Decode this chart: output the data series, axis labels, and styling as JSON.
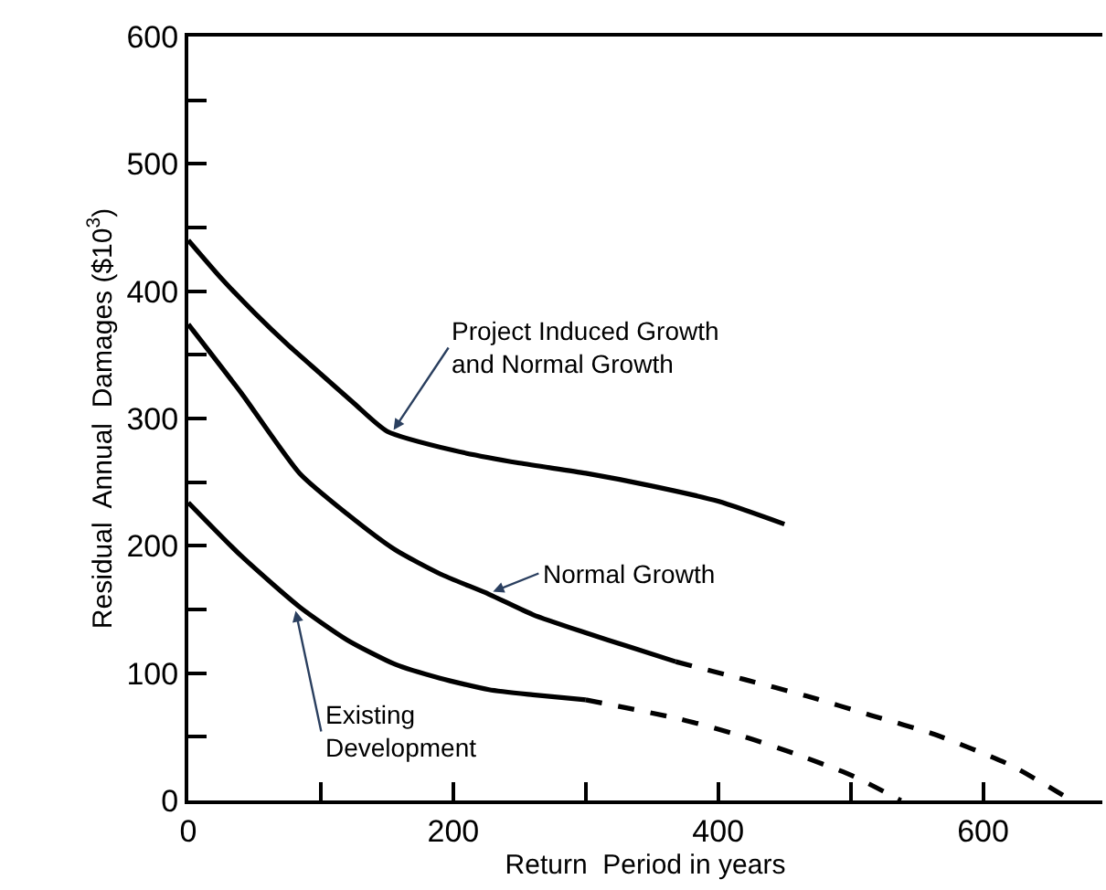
{
  "chart_data": {
    "type": "line",
    "xlabel": "Return  Period in years",
    "ylabel": "Residual  Annual  Damages ($10$^{3}$)",
    "xlim": [
      0,
      690
    ],
    "ylim": [
      0,
      600
    ],
    "xticks": [
      0,
      {
        "value": 100,
        "label": null
      },
      200,
      {
        "value": 300,
        "label": null
      },
      400,
      {
        "value": 500,
        "label": null
      },
      600
    ],
    "yticks": [
      0,
      {
        "value": 50,
        "label": null
      },
      100,
      {
        "value": 150,
        "label": null
      },
      200,
      {
        "value": 250,
        "label": null
      },
      300,
      {
        "value": 350,
        "label": null
      },
      400,
      {
        "value": 450,
        "label": null
      },
      500,
      {
        "value": 550,
        "label": null
      },
      600
    ],
    "marker": "none",
    "series": [
      {
        "color": "#000000",
        "line_style": "solid",
        "x": [
          0,
          25,
          50,
          75,
          100,
          125,
          150,
          200,
          250,
          300,
          350,
          400,
          450
        ],
        "values": [
          440,
          410,
          383,
          358,
          335,
          312,
          290,
          275,
          265,
          257,
          247,
          235,
          217
        ]
      },
      {
        "color": "#000000",
        "line_style": "solid",
        "x": [
          0,
          40,
          84,
          120,
          156,
          190,
          227,
          260,
          299,
          335,
          368
        ],
        "values": [
          374,
          320,
          257,
          225,
          197,
          178,
          162,
          146,
          132,
          120,
          109
        ]
      },
      {
        "color": "#000000",
        "line_style": "dashed",
        "x": [
          368,
          420,
          467,
          515,
          563,
          620,
          667
        ],
        "values": [
          109,
          95,
          82,
          67,
          52,
          28,
          0
        ]
      },
      {
        "color": "#000000",
        "line_style": "solid",
        "x": [
          0,
          40,
          84,
          120,
          156,
          190,
          227,
          260,
          300
        ],
        "values": [
          234,
          192,
          152,
          126,
          107,
          96,
          87,
          83,
          79
        ]
      },
      {
        "color": "#000000",
        "line_style": "dashed",
        "x": [
          300,
          371,
          420,
          457,
          500,
          538
        ],
        "values": [
          79,
          64,
          50,
          37,
          20,
          0
        ]
      }
    ],
    "annotations": [
      {
        "text": "Project Induced Growth\nand Normal Growth",
        "x": 155,
        "y": 291
      },
      {
        "text": "Normal Growth",
        "x": 230,
        "y": 164
      },
      {
        "text": "Existing\nDevelopment",
        "x": 81,
        "y": 149
      }
    ]
  }
}
